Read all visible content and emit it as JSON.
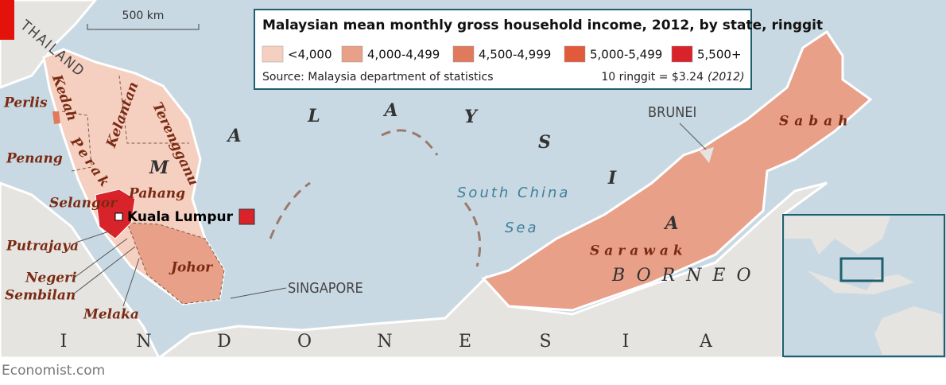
{
  "header": {
    "title": "Malaysian mean monthly gross household income, 2012, by state, ringgit",
    "source": "Source: Malaysia department of statistics",
    "note": "10 ringgit = $3.24",
    "note_year": "(2012)"
  },
  "legend": {
    "items": [
      {
        "label": "<4,000",
        "color": "#f5cfc0"
      },
      {
        "label": "4,000-4,499",
        "color": "#e8a088"
      },
      {
        "label": "4,500-4,999",
        "color": "#e07a5c"
      },
      {
        "label": "5,000-5,499",
        "color": "#e25a3c"
      },
      {
        "label": "5,500+",
        "color": "#d9232a"
      }
    ]
  },
  "scale": "500 km",
  "labels": {
    "thailand": "THAILAND",
    "perlis": "Perlis",
    "kedah": "Kedah",
    "penang": "Penang",
    "perak": "Perak",
    "kelantan": "Kelantan",
    "terengganu": "Terengganu",
    "pahang": "Pahang",
    "selangor": "Selangor",
    "kuala_lumpur": "Kuala Lumpur",
    "putrajaya": "Putrajaya",
    "negeri_line1": "Negeri",
    "negeri_line2": "Sembilan",
    "melaka": "Melaka",
    "johor": "Johor",
    "singapore": "SINGAPORE",
    "brunei": "BRUNEI",
    "sabah": "Sabah",
    "sarawak": "Sarawak",
    "borneo": "BORNEO",
    "sea_line1": "South China",
    "sea_line2": "Sea"
  },
  "malaysia_letters": [
    "M",
    "A",
    "L",
    "A",
    "Y",
    "S",
    "I",
    "A"
  ],
  "indonesia_letters": [
    "I",
    "N",
    "D",
    "O",
    "N",
    "E",
    "S",
    "I",
    "A"
  ],
  "footer": "Economist.com"
}
